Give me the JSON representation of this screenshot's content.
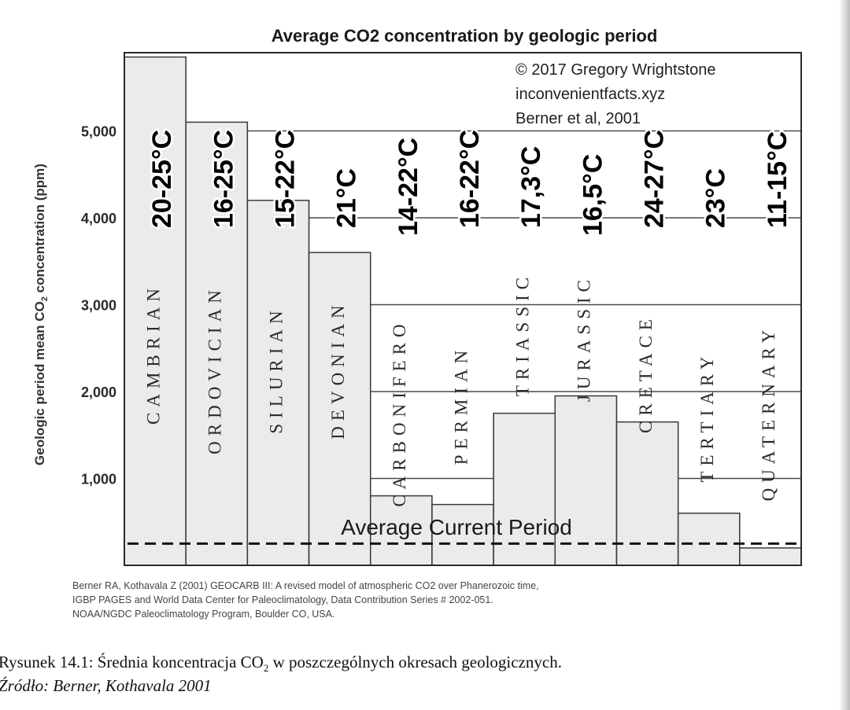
{
  "chart_data": {
    "type": "bar",
    "title": "Average CO2 concentration by geologic period",
    "ylabel_main": "Geologic period mean CO",
    "ylabel_sub": "2",
    "ylabel_tail": " concentration (ppm)",
    "ylim": [
      0,
      5900
    ],
    "yticks": [
      {
        "value": 1000,
        "label": "1,000"
      },
      {
        "value": 2000,
        "label": "2,000"
      },
      {
        "value": 3000,
        "label": "3,000"
      },
      {
        "value": 4000,
        "label": "4,000"
      },
      {
        "value": 5000,
        "label": "5,000"
      }
    ],
    "categories": [
      "CAMBRIAN",
      "ORDOVICIAN",
      "SILURIAN",
      "DEVONIAN",
      "CARBONIFERO",
      "PERMIAN",
      "TRIASSIC",
      "JURASSIC",
      "CRETACE",
      "TERTIARY",
      "QUATERNARY"
    ],
    "values": [
      5850,
      5100,
      4200,
      3600,
      800,
      700,
      1750,
      1950,
      1650,
      600,
      200
    ],
    "temperatures": [
      "20-25°C",
      "16-25°C",
      "15-22°C",
      "21°C",
      "14-22°C",
      "16-22°C",
      "17,3°C",
      "16,5°C",
      "24-27°C",
      "23°C",
      "11-15°C"
    ],
    "current_level": 250,
    "current_label": "Average Current Period",
    "credits": [
      "© 2017 Gregory Wrightstone",
      "inconvenientfacts.xyz",
      "Berner et al, 2001"
    ],
    "grid": "horizontal-partial",
    "colors": {
      "bar_fill": "#ebebeb",
      "bar_edge": "#3a3a3a",
      "text": "#1a1a1a",
      "grid": "#4a4a4a"
    }
  },
  "reference": [
    "Berner RA, Kothavala Z (2001) GEOCARB III: A revised model of atmospheric CO2 over Phanerozoic time,",
    "IGBP PAGES and World Data Center for Paleoclimatology, Data Contribution Series # 2002-051.",
    "NOAA/NGDC Paleoclimatology Program, Boulder CO, USA."
  ],
  "caption": {
    "prefix": "Rysunek 14.1: Średnia koncentracja CO",
    "sub": "2",
    "suffix": " w poszczególnych okresach geologicznych.",
    "source": "Źródło: Berner, Kothavala 2001"
  }
}
